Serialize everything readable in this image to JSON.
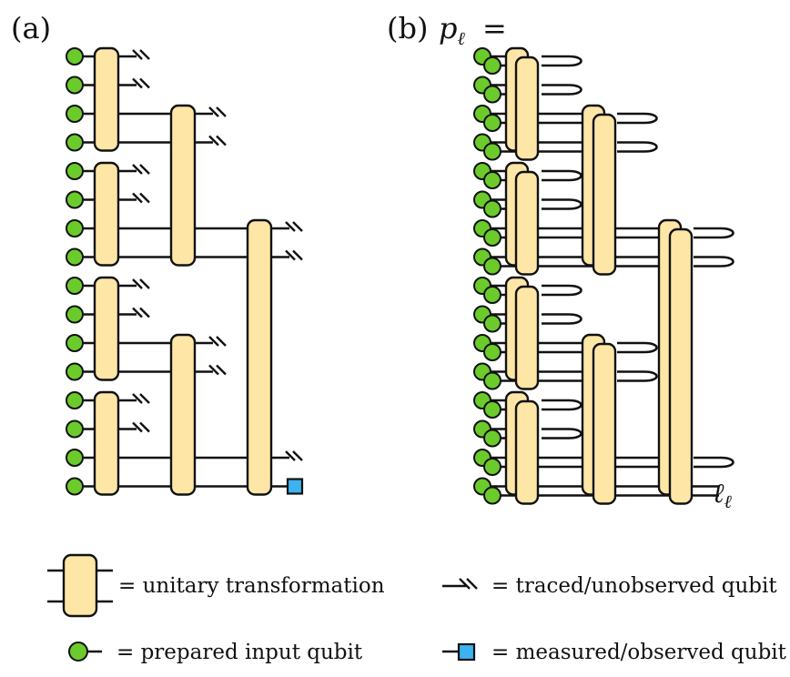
{
  "panel_a": {
    "label": "(a)"
  },
  "panel_b": {
    "label": "(b)",
    "equation_lhs": "p",
    "equation_sub": "ℓ",
    "equation_eq": "=",
    "output_label": "ℓ",
    "output_label_sub": "ℓ"
  },
  "legend": {
    "unitary": "= unitary transformation",
    "traced": "= traced/unobserved qubit",
    "prepared": "= prepared input qubit",
    "measured": "= measured/observed qubit"
  },
  "colors": {
    "gate_fill": "#fde6a6",
    "qubit_fill": "#6bcb2b",
    "measure_fill": "#3db2f0",
    "wire": "#111111"
  }
}
